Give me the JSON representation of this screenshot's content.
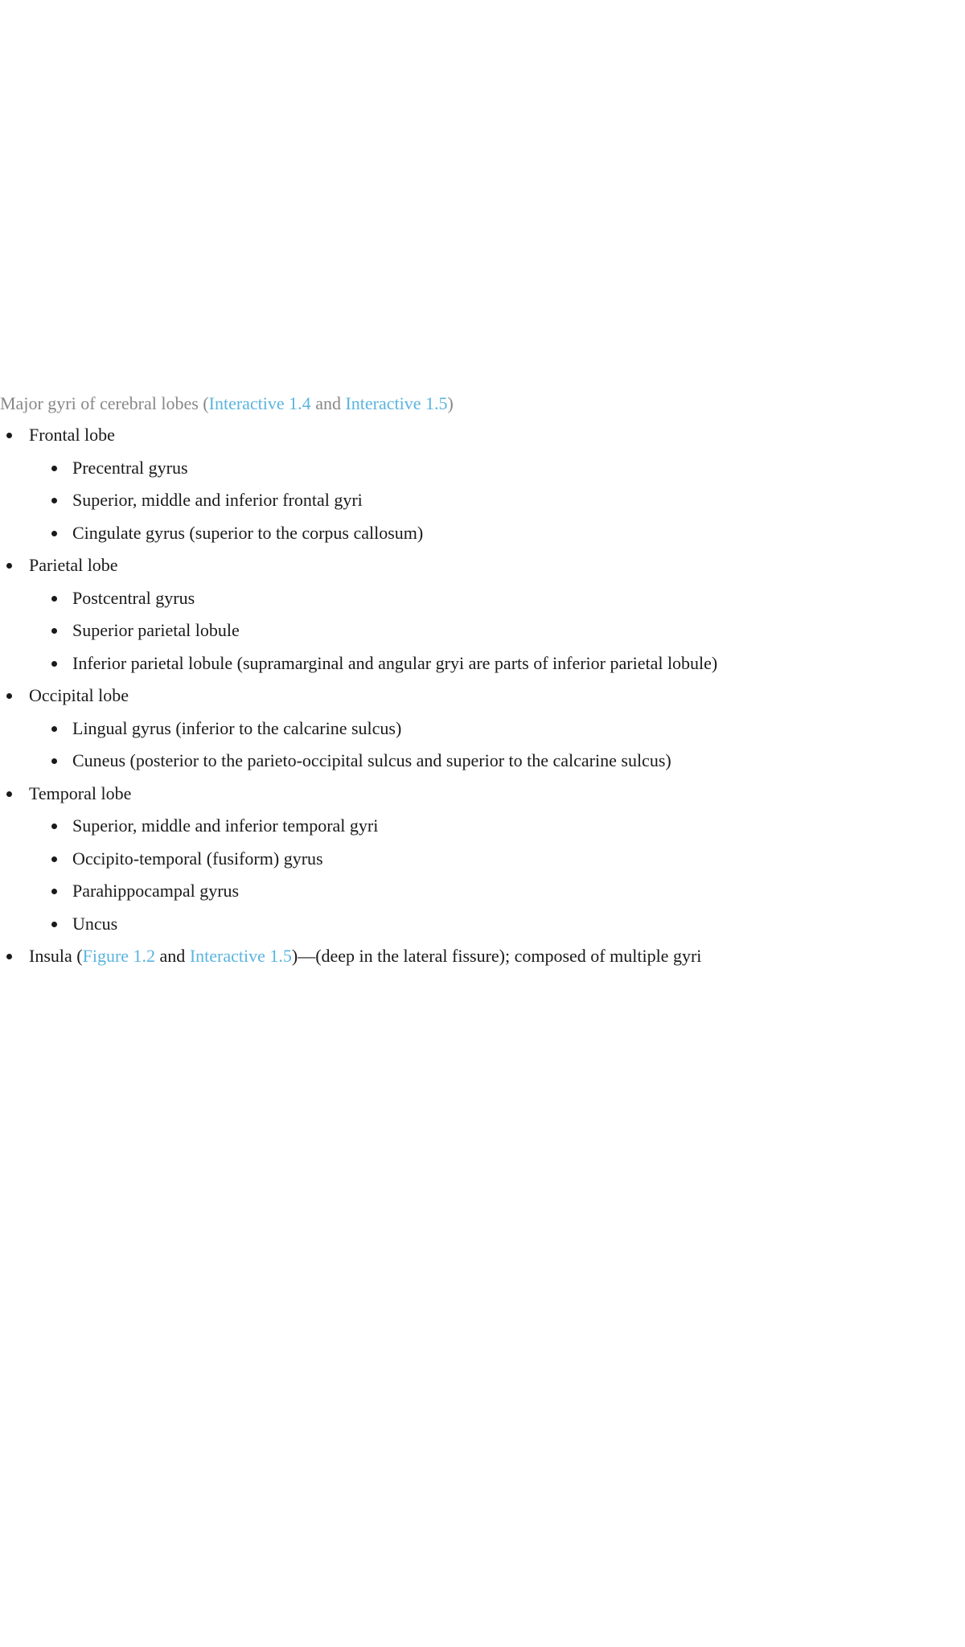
{
  "colors": {
    "text": "#1a1a1a",
    "muted": "#888888",
    "link": "#5ab4e0"
  },
  "heading": {
    "prefix": "Major gyri of cerebral lobes (",
    "link1": "Interactive 1.4",
    "mid": " and ",
    "link2": "Interactive 1.5",
    "suffix": ")"
  },
  "lobes": [
    {
      "label": "Frontal lobe",
      "items": [
        "Precentral gyrus",
        "Superior, middle and inferior frontal gyri",
        "Cingulate gyrus (superior to the corpus callosum)"
      ]
    },
    {
      "label": "Parietal lobe",
      "items": [
        "Postcentral gyrus",
        "Superior parietal lobule",
        "Inferior parietal lobule (supramarginal and angular gryi are parts of inferior parietal lobule)"
      ]
    },
    {
      "label": "Occipital lobe",
      "items": [
        "Lingual gyrus (inferior to the calcarine sulcus)",
        "Cuneus (posterior to the parieto-occipital sulcus and superior to the calcarine sulcus)"
      ]
    },
    {
      "label": "Temporal lobe",
      "items": [
        "Superior, middle and inferior temporal gyri",
        "Occipito-temporal (fusiform) gyrus",
        "Parahippocampal gyrus",
        "Uncus"
      ]
    }
  ],
  "insula": {
    "prefix": "Insula (",
    "link1": "Figure 1.2",
    "mid": " and ",
    "link2": "Interactive 1.5",
    "suffix": ")—(deep in the lateral fissure); composed of multiple gyri"
  }
}
